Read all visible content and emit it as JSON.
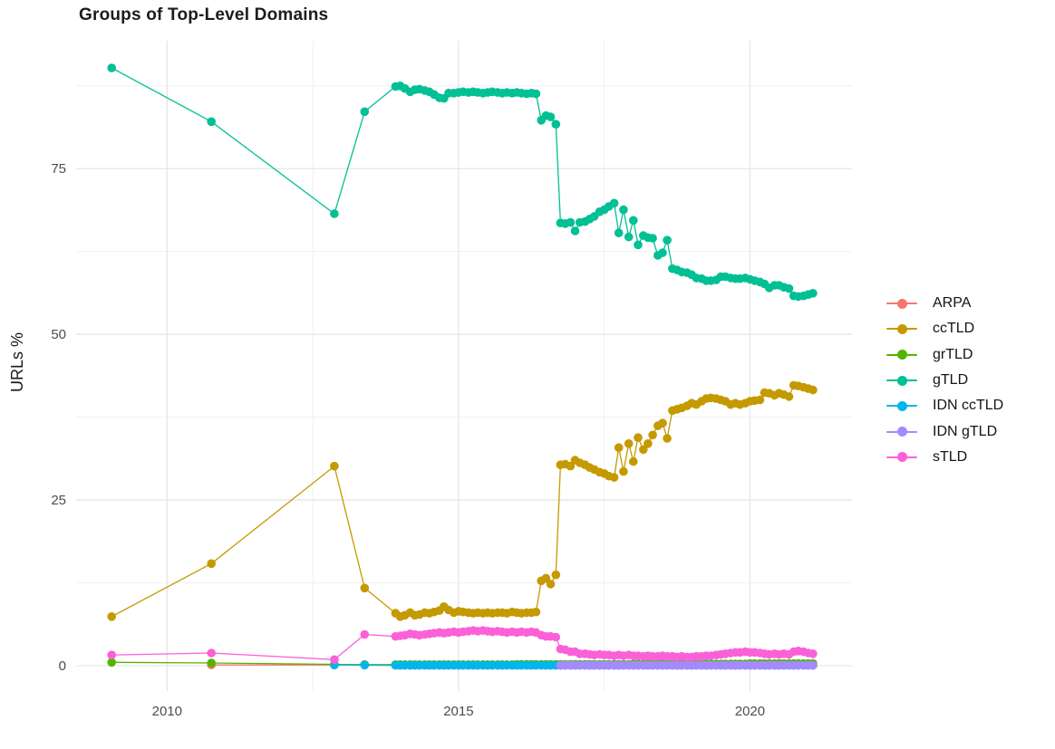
{
  "title": "Groups of Top-Level Domains",
  "chart_data": {
    "type": "scatter",
    "title": "Groups of Top-Level Domains",
    "xlabel": "",
    "ylabel": "URLs %",
    "xlim": [
      2008.44,
      2021.75
    ],
    "ylim": [
      -3.7,
      94.3
    ],
    "x_ticks": [
      2010,
      2015,
      2020
    ],
    "x_minor_ticks": [
      2012.5,
      2017.5
    ],
    "y_ticks": [
      0,
      25,
      50,
      75
    ],
    "y_minor_ticks": [
      12.5,
      37.5,
      62.5,
      87.5
    ],
    "grid": "on",
    "legend_position": "right",
    "x_dense": [
      2013.92,
      2014.0,
      2014.08,
      2014.17,
      2014.25,
      2014.33,
      2014.42,
      2014.5,
      2014.58,
      2014.67,
      2014.75,
      2014.83,
      2014.92,
      2015.0,
      2015.08,
      2015.17,
      2015.25,
      2015.33,
      2015.42,
      2015.5,
      2015.58,
      2015.67,
      2015.75,
      2015.83,
      2015.92,
      2016.0,
      2016.08,
      2016.17,
      2016.25,
      2016.33,
      2016.42,
      2016.5,
      2016.58,
      2016.67,
      2016.75,
      2016.83,
      2016.92,
      2017.0,
      2017.08,
      2017.17,
      2017.25,
      2017.33,
      2017.42,
      2017.5,
      2017.58,
      2017.67,
      2017.75,
      2017.83,
      2017.92,
      2018.0,
      2018.08,
      2018.17,
      2018.25,
      2018.33,
      2018.42,
      2018.5,
      2018.58,
      2018.67,
      2018.75,
      2018.83,
      2018.92,
      2019.0,
      2019.08,
      2019.17,
      2019.25,
      2019.33,
      2019.42,
      2019.5,
      2019.58,
      2019.67,
      2019.75,
      2019.83,
      2019.92,
      2020.0,
      2020.08,
      2020.17,
      2020.25,
      2020.33,
      2020.42,
      2020.5,
      2020.58,
      2020.67,
      2020.75,
      2020.83,
      2020.92,
      2021.0,
      2021.08
    ],
    "series": [
      {
        "name": "ARPA",
        "slug": "arpa",
        "color": "#F8766D",
        "prefix": [
          [
            2010.76,
            0.1
          ],
          [
            2012.87,
            0.1
          ],
          [
            2013.39,
            0.08
          ]
        ],
        "dense_fill": 0.05
      },
      {
        "name": "ccTLD",
        "slug": "cctld",
        "color": "#C49A00",
        "prefix": [
          [
            2009.05,
            7.4
          ],
          [
            2010.76,
            15.4
          ],
          [
            2012.87,
            30.1
          ],
          [
            2013.39,
            11.7
          ]
        ],
        "dense_y": [
          7.9,
          7.4,
          7.6,
          8.0,
          7.6,
          7.7,
          8.0,
          7.9,
          8.1,
          8.3,
          8.9,
          8.4,
          8.0,
          8.2,
          8.1,
          8.0,
          7.9,
          8.0,
          7.9,
          8.0,
          7.9,
          8.0,
          8.0,
          7.9,
          8.1,
          8.0,
          7.9,
          8.0,
          8.0,
          8.1,
          12.8,
          13.2,
          12.3,
          13.7,
          30.3,
          30.4,
          30.1,
          31.0,
          30.6,
          30.3,
          29.9,
          29.6,
          29.2,
          29.0,
          28.6,
          28.4,
          32.9,
          29.3,
          33.5,
          30.8,
          34.4,
          32.6,
          33.5,
          34.8,
          36.2,
          36.6,
          34.3,
          38.5,
          38.7,
          38.9,
          39.2,
          39.6,
          39.4,
          39.9,
          40.3,
          40.4,
          40.3,
          40.1,
          39.9,
          39.4,
          39.6,
          39.4,
          39.6,
          39.9,
          40.0,
          40.1,
          41.2,
          41.1,
          40.8,
          41.1,
          40.9,
          40.6,
          42.3,
          42.2,
          42.0,
          41.8,
          41.6
        ]
      },
      {
        "name": "grTLD",
        "slug": "grtld",
        "color": "#53B400",
        "prefix": [
          [
            2009.05,
            0.5
          ],
          [
            2010.76,
            0.4
          ],
          [
            2012.87,
            0.2
          ],
          [
            2013.39,
            0.15
          ]
        ],
        "dense_y": [
          0.15,
          0.15,
          0.15,
          0.15,
          0.15,
          0.15,
          0.15,
          0.15,
          0.15,
          0.15,
          0.15,
          0.15,
          0.15,
          0.15,
          0.15,
          0.15,
          0.15,
          0.15,
          0.15,
          0.15,
          0.15,
          0.15,
          0.15,
          0.15,
          0.15,
          0.2,
          0.2,
          0.2,
          0.2,
          0.2,
          0.2,
          0.2,
          0.2,
          0.2,
          0.2,
          0.2,
          0.2,
          0.2,
          0.2,
          0.2,
          0.2,
          0.2,
          0.2,
          0.2,
          0.2,
          0.2,
          0.2,
          0.2,
          0.2,
          0.25,
          0.25,
          0.25,
          0.25,
          0.25,
          0.25,
          0.25,
          0.25,
          0.25,
          0.25,
          0.25,
          0.25,
          0.25,
          0.25,
          0.25,
          0.25,
          0.25,
          0.25,
          0.25,
          0.25,
          0.25,
          0.25,
          0.25,
          0.25,
          0.3,
          0.3,
          0.3,
          0.3,
          0.3,
          0.3,
          0.3,
          0.3,
          0.3,
          0.3,
          0.3,
          0.3,
          0.3,
          0.3
        ]
      },
      {
        "name": "gTLD",
        "slug": "gtld",
        "color": "#00C094",
        "prefix": [
          [
            2009.05,
            90.2
          ],
          [
            2010.76,
            82.1
          ],
          [
            2012.87,
            68.2
          ],
          [
            2013.39,
            83.6
          ]
        ],
        "dense_y": [
          87.4,
          87.5,
          87.1,
          86.6,
          86.9,
          87.0,
          86.8,
          86.6,
          86.2,
          85.7,
          85.6,
          86.4,
          86.4,
          86.5,
          86.6,
          86.5,
          86.6,
          86.5,
          86.4,
          86.5,
          86.6,
          86.5,
          86.4,
          86.5,
          86.4,
          86.5,
          86.4,
          86.3,
          86.4,
          86.3,
          82.3,
          83.0,
          82.8,
          81.7,
          66.8,
          66.7,
          66.9,
          65.6,
          66.9,
          67.0,
          67.4,
          67.8,
          68.5,
          68.8,
          69.3,
          69.8,
          65.3,
          68.8,
          64.7,
          67.2,
          63.5,
          64.9,
          64.6,
          64.5,
          61.9,
          62.3,
          64.2,
          59.9,
          59.7,
          59.4,
          59.3,
          59.0,
          58.5,
          58.4,
          58.1,
          58.1,
          58.2,
          58.7,
          58.7,
          58.5,
          58.4,
          58.4,
          58.5,
          58.3,
          58.1,
          57.9,
          57.6,
          57.0,
          57.4,
          57.4,
          57.1,
          56.9,
          55.8,
          55.7,
          55.8,
          56.0,
          56.2
        ]
      },
      {
        "name": "IDN ccTLD",
        "slug": "idn-cctld",
        "color": "#00B6EB",
        "prefix": [
          [
            2012.87,
            0.1
          ],
          [
            2013.39,
            0.08
          ]
        ],
        "dense_fill": 0.05
      },
      {
        "name": "IDN gTLD",
        "slug": "idn-gtld",
        "color": "#A58AFF",
        "prefix": [],
        "dense_from": 34,
        "dense_fill": 0.05
      },
      {
        "name": "sTLD",
        "slug": "stld",
        "color": "#FB61D7",
        "prefix": [
          [
            2009.05,
            1.6
          ],
          [
            2010.76,
            1.9
          ],
          [
            2012.87,
            0.9
          ],
          [
            2013.39,
            4.7
          ]
        ],
        "dense_y": [
          4.4,
          4.5,
          4.6,
          4.8,
          4.7,
          4.6,
          4.7,
          4.8,
          4.9,
          5.0,
          4.9,
          5.0,
          5.1,
          5.0,
          5.1,
          5.2,
          5.3,
          5.2,
          5.3,
          5.2,
          5.1,
          5.2,
          5.1,
          5.0,
          5.1,
          5.0,
          5.1,
          5.0,
          5.1,
          5.0,
          4.6,
          4.4,
          4.4,
          4.3,
          2.5,
          2.4,
          2.1,
          2.1,
          1.8,
          1.8,
          1.7,
          1.6,
          1.7,
          1.6,
          1.6,
          1.5,
          1.6,
          1.5,
          1.6,
          1.5,
          1.5,
          1.4,
          1.5,
          1.4,
          1.4,
          1.5,
          1.4,
          1.4,
          1.3,
          1.4,
          1.3,
          1.3,
          1.4,
          1.4,
          1.5,
          1.5,
          1.6,
          1.7,
          1.8,
          1.9,
          2.0,
          2.0,
          2.1,
          2.0,
          2.0,
          1.9,
          1.8,
          1.7,
          1.8,
          1.7,
          1.8,
          1.7,
          2.1,
          2.2,
          2.1,
          1.9,
          1.8
        ]
      }
    ],
    "style": {
      "grid_major_color": "#E4E4E4",
      "grid_minor_color": "#EFEFEF",
      "tick_label_color": "#4d4d4d",
      "axis_title_color": "#1a1a1a",
      "background": "#ffffff"
    }
  }
}
